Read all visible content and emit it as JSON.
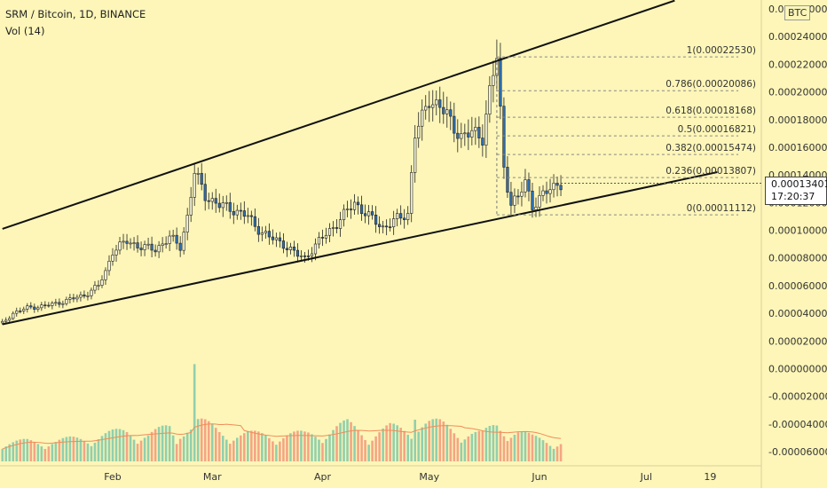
{
  "header": {
    "title": "SRM / Bitcoin, 1D, BINANCE",
    "indicator": "Vol (14)"
  },
  "axis": {
    "unit": "BTC",
    "current_price": "0.00013401",
    "countdown": "17:20:37"
  },
  "colors": {
    "background": "#FDF6B8",
    "up": "#F5F5DC",
    "down": "#2F6FB0",
    "vol_up": "#7FC8A9",
    "vol_down": "#F2967A",
    "trendline": "#111111",
    "vol_ma": "#F08C5A"
  },
  "chart_data": {
    "type": "candlestick",
    "title": "SRM / Bitcoin, 1D, BINANCE",
    "y_ticks": [
      "0.00026000",
      "0.00024000",
      "0.00022000",
      "0.00020000",
      "0.00018000",
      "0.00016000",
      "0.00014000",
      "0.00012000",
      "0.00010000",
      "0.00008000",
      "0.00006000",
      "0.00004000",
      "0.00002000",
      "0.00000000",
      "-0.00002000",
      "-0.00004000",
      "-0.00006000"
    ],
    "y_tick_values": [
      0.00026,
      0.00024,
      0.00022,
      0.0002,
      0.00018,
      0.00016,
      0.00014,
      0.00012,
      0.0001,
      8e-05,
      6e-05,
      4e-05,
      2e-05,
      0,
      -2e-05,
      -4e-05,
      -6e-05
    ],
    "x_ticks": [
      {
        "label": "Feb",
        "day": 32
      },
      {
        "label": "Mar",
        "day": 60
      },
      {
        "label": "Apr",
        "day": 91
      },
      {
        "label": "May",
        "day": 121
      },
      {
        "label": "Jun",
        "day": 152
      },
      {
        "label": "Jul",
        "day": 182
      },
      {
        "label": "19",
        "day": 200
      }
    ],
    "day_range": [
      1,
      158
    ],
    "price_points": [
      [
        1,
        3.3e-05
      ],
      [
        4,
        4e-05
      ],
      [
        8,
        4.4e-05
      ],
      [
        12,
        4.5e-05
      ],
      [
        16,
        4.7e-05
      ],
      [
        20,
        5e-05
      ],
      [
        24,
        5.3e-05
      ],
      [
        28,
        6e-05
      ],
      [
        30,
        7e-05
      ],
      [
        32,
        8.5e-05
      ],
      [
        36,
        9.2e-05
      ],
      [
        40,
        8.8e-05
      ],
      [
        44,
        8.6e-05
      ],
      [
        48,
        9.5e-05
      ],
      [
        51,
        8.8e-05
      ],
      [
        53,
        0.00011
      ],
      [
        55,
        0.000142
      ],
      [
        58,
        0.000125
      ],
      [
        62,
        0.000118
      ],
      [
        66,
        0.000115
      ],
      [
        70,
        0.00011
      ],
      [
        72,
        0.000103
      ],
      [
        76,
        9.5e-05
      ],
      [
        80,
        9e-05
      ],
      [
        84,
        8.2e-05
      ],
      [
        86,
        8e-05
      ],
      [
        90,
        9.2e-05
      ],
      [
        95,
        0.000105
      ],
      [
        100,
        0.00012
      ],
      [
        104,
        0.00011
      ],
      [
        108,
        0.000102
      ],
      [
        112,
        0.000108
      ],
      [
        115,
        0.000112
      ],
      [
        117,
        0.00017
      ],
      [
        119,
        0.00018
      ],
      [
        121,
        0.000195
      ],
      [
        124,
        0.00019
      ],
      [
        127,
        0.000178
      ],
      [
        130,
        0.000168
      ],
      [
        133,
        0.00017
      ],
      [
        136,
        0.000168
      ],
      [
        138,
        0.0002
      ],
      [
        140,
        0.000225
      ],
      [
        142,
        0.000145
      ],
      [
        144,
        0.00012
      ],
      [
        146,
        0.000123
      ],
      [
        148,
        0.000135
      ],
      [
        150,
        0.000118
      ],
      [
        153,
        0.000125
      ],
      [
        155,
        0.00013
      ],
      [
        157,
        0.000134
      ]
    ],
    "volume_points": [
      [
        1,
        5
      ],
      [
        8,
        6
      ],
      [
        16,
        6
      ],
      [
        24,
        7
      ],
      [
        30,
        8
      ],
      [
        36,
        9
      ],
      [
        42,
        8
      ],
      [
        48,
        10
      ],
      [
        50,
        6
      ],
      [
        52,
        12
      ],
      [
        54,
        11
      ],
      [
        55,
        30
      ],
      [
        56,
        12
      ],
      [
        62,
        9
      ],
      [
        68,
        8
      ],
      [
        74,
        8
      ],
      [
        80,
        8
      ],
      [
        86,
        8
      ],
      [
        92,
        9
      ],
      [
        98,
        11
      ],
      [
        104,
        8
      ],
      [
        110,
        10
      ],
      [
        116,
        9
      ],
      [
        117,
        20
      ],
      [
        118,
        12
      ],
      [
        124,
        11
      ],
      [
        130,
        9
      ],
      [
        136,
        8
      ],
      [
        140,
        11
      ],
      [
        142,
        10
      ],
      [
        146,
        9
      ],
      [
        150,
        7
      ],
      [
        156,
        6
      ]
    ],
    "volume_scale_max": 30,
    "trendlines": [
      {
        "name": "upper",
        "points": [
          [
            1,
            0.000101
          ],
          [
            190,
            0.000266
          ]
        ]
      },
      {
        "name": "lower",
        "points": [
          [
            1,
            3.2e-05
          ],
          [
            202,
            0.000142
          ]
        ]
      }
    ],
    "fibonacci": [
      {
        "label": "1(0.00022530)",
        "value": 0.0002253
      },
      {
        "label": "0.786(0.00020086)",
        "value": 0.00020086
      },
      {
        "label": "0.618(0.00018168)",
        "value": 0.00018168
      },
      {
        "label": "0.5(0.00016821)",
        "value": 0.00016821
      },
      {
        "label": "0.382(0.00015474)",
        "value": 0.00015474
      },
      {
        "label": "0.236(0.00013807)",
        "value": 0.00013807
      },
      {
        "label": "0(0.00011112)",
        "value": 0.00011112
      }
    ],
    "fib_day_range": [
      140,
      158
    ],
    "current_value": 0.00013401
  }
}
